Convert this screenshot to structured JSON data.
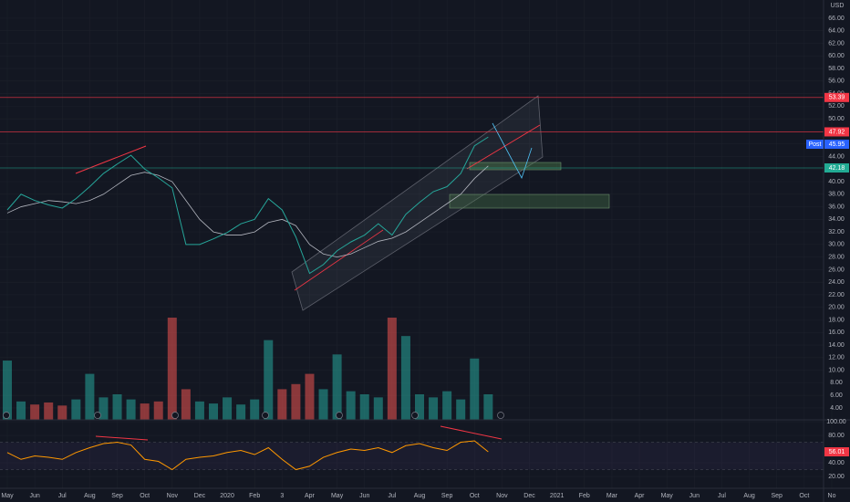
{
  "chart_data": [
    {
      "type": "line",
      "currency": "USD",
      "color": "#26a69a",
      "categories": [
        "May",
        null,
        "Jun",
        null,
        "Jul",
        null,
        "Aug",
        null,
        "Sep",
        null,
        "Oct",
        null,
        "Nov",
        null,
        "Dec",
        null,
        "2020",
        null,
        "Feb",
        null,
        "3",
        null,
        "Apr",
        null,
        "May",
        null,
        "Jun",
        null,
        "Jul",
        null,
        "Aug",
        null,
        "Sep",
        null,
        "Oct",
        null,
        "Nov",
        null,
        "Dec",
        null,
        "2021",
        null,
        "Feb",
        null,
        "Mar",
        null,
        "Apr",
        null,
        "May",
        null,
        "Jun",
        null,
        "Jul",
        null,
        "Aug",
        null,
        "Sep",
        null,
        "Oct",
        null,
        "No"
      ],
      "values": [
        35.5,
        38,
        37,
        36.3,
        35.8,
        37.3,
        39.2,
        41.3,
        42.8,
        44.2,
        42,
        40.6,
        39,
        30,
        30,
        30.9,
        31.9,
        33.3,
        34,
        37.3,
        35.5,
        31.2,
        25.4,
        26.8,
        29,
        30.4,
        31.5,
        33.3,
        31.5,
        34.8,
        36.7,
        38.4,
        39.2,
        41.3,
        45.7,
        47.1,
        null,
        null,
        null,
        null,
        null,
        null,
        null,
        null,
        null,
        null,
        null,
        null,
        null,
        null,
        null,
        null,
        null,
        null,
        null,
        null,
        null,
        null,
        null,
        null,
        null
      ],
      "ma": {
        "color": "#b2b5be",
        "values": [
          35,
          36,
          36.5,
          37,
          36.8,
          36.5,
          37,
          38,
          39.5,
          41,
          41.5,
          41,
          40,
          37,
          34,
          32,
          31.5,
          31.5,
          32,
          33.5,
          34,
          33,
          30,
          28.5,
          28,
          28.5,
          29.5,
          30.5,
          31,
          32,
          33.5,
          35,
          36.5,
          38,
          40.5,
          42.5,
          null,
          null,
          null,
          null,
          null,
          null,
          null,
          null,
          null,
          null,
          null,
          null,
          null,
          null,
          null,
          null,
          null,
          null,
          null,
          null,
          null,
          null,
          null,
          null,
          null
        ]
      },
      "ylim": [
        2.1,
        68.9
      ],
      "yticks": [
        {
          "value": 66,
          "label": "66.00"
        },
        {
          "value": 64,
          "label": "64.00"
        },
        {
          "value": 62,
          "label": "62.00"
        },
        {
          "value": 60,
          "label": "60.00"
        },
        {
          "value": 58,
          "label": "58.00"
        },
        {
          "value": 56,
          "label": "56.00"
        },
        {
          "value": 54,
          "label": "54.00"
        },
        {
          "value": 52,
          "label": "52.00"
        },
        {
          "value": 50,
          "label": "50.00"
        },
        {
          "value": 48,
          "label": "48.00"
        },
        {
          "value": 46,
          "label": "46.00"
        },
        {
          "value": 44,
          "label": "44.00"
        },
        {
          "value": 42,
          "label": "42.00"
        },
        {
          "value": 40,
          "label": "40.00"
        },
        {
          "value": 38,
          "label": "38.00"
        },
        {
          "value": 36,
          "label": "36.00"
        },
        {
          "value": 34,
          "label": "34.00"
        },
        {
          "value": 32,
          "label": "32.00"
        },
        {
          "value": 30,
          "label": "30.00"
        },
        {
          "value": 28,
          "label": "28.00"
        },
        {
          "value": 26,
          "label": "26.00"
        },
        {
          "value": 24,
          "label": "24.00"
        },
        {
          "value": 22,
          "label": "22.00"
        },
        {
          "value": 20,
          "label": "20.00"
        },
        {
          "value": 18,
          "label": "18.00"
        },
        {
          "value": 16,
          "label": "16.00"
        },
        {
          "value": 14,
          "label": "14.00"
        },
        {
          "value": 12,
          "label": "12.00"
        },
        {
          "value": 10,
          "label": "10.00"
        },
        {
          "value": 8,
          "label": "8.00"
        },
        {
          "value": 6,
          "label": "6.00"
        },
        {
          "value": 4,
          "label": "4.00"
        }
      ],
      "price_lines": [
        {
          "value": 53.39,
          "label": "53.39",
          "color": "#f23645"
        },
        {
          "value": 47.92,
          "label": "47.92",
          "color": "#f23645"
        },
        {
          "value": 45.95,
          "label": "45.95",
          "tag": "Post",
          "color": "#2962ff"
        },
        {
          "value": 42.18,
          "label": "42.18",
          "color": "#22ab94"
        }
      ]
    },
    {
      "type": "bar",
      "up_color": "#26a69a",
      "down_color": "#ef5350",
      "ylim": [
        0,
        100
      ],
      "values": [
        58,
        18,
        15,
        17,
        14,
        20,
        45,
        22,
        25,
        20,
        16,
        18,
        100,
        30,
        18,
        16,
        22,
        15,
        20,
        78,
        30,
        35,
        45,
        30,
        64,
        28,
        25,
        22,
        100,
        82,
        25,
        22,
        28,
        20,
        60,
        25
      ]
    },
    {
      "type": "line",
      "color": "#ff9800",
      "ylim": [
        2.7,
        102.7
      ],
      "band": [
        70,
        30
      ],
      "values": [
        55,
        45,
        50,
        48,
        45,
        55,
        62,
        68,
        70,
        66,
        45,
        42,
        30,
        45,
        48,
        50,
        55,
        58,
        52,
        62,
        45,
        30,
        35,
        48,
        55,
        60,
        58,
        62,
        55,
        65,
        68,
        62,
        58,
        70,
        72,
        56.01
      ],
      "yticks": [
        {
          "value": 100,
          "label": "100.00"
        },
        {
          "value": 80,
          "label": "80.00"
        },
        {
          "value": 40,
          "label": "40.00"
        },
        {
          "value": 20,
          "label": "20.00"
        }
      ]
    }
  ]
}
